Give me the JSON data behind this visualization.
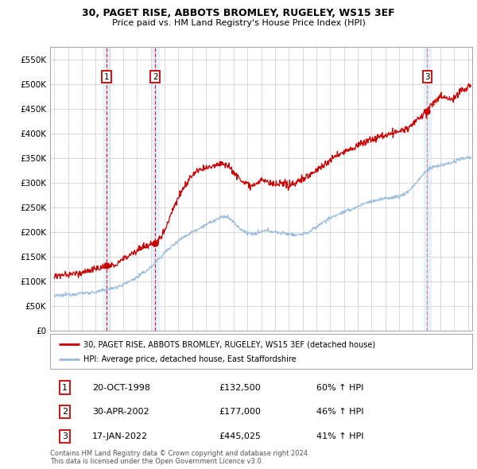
{
  "title_line1": "30, PAGET RISE, ABBOTS BROMLEY, RUGELEY, WS15 3EF",
  "title_line2": "Price paid vs. HM Land Registry's House Price Index (HPI)",
  "ylim": [
    0,
    575000
  ],
  "yticks": [
    0,
    50000,
    100000,
    150000,
    200000,
    250000,
    300000,
    350000,
    400000,
    450000,
    500000,
    550000
  ],
  "ytick_labels": [
    "£0",
    "£50K",
    "£100K",
    "£150K",
    "£200K",
    "£250K",
    "£300K",
    "£350K",
    "£400K",
    "£450K",
    "£500K",
    "£550K"
  ],
  "xlim_start": 1994.7,
  "xlim_end": 2025.3,
  "xticks": [
    1995,
    1996,
    1997,
    1998,
    1999,
    2000,
    2001,
    2002,
    2003,
    2004,
    2005,
    2006,
    2007,
    2008,
    2009,
    2010,
    2011,
    2012,
    2013,
    2014,
    2015,
    2016,
    2017,
    2018,
    2019,
    2020,
    2021,
    2022,
    2023,
    2024,
    2025
  ],
  "sale_dates": [
    1998.8,
    2002.33,
    2022.04
  ],
  "sale_prices": [
    132500,
    177000,
    445025
  ],
  "sale_labels": [
    "1",
    "2",
    "3"
  ],
  "red_line_color": "#cc0000",
  "blue_line_color": "#99bbdd",
  "vline_color": "#cc0000",
  "grid_color": "#cccccc",
  "sale_bg_color": "#ddeeff",
  "legend_line1": "30, PAGET RISE, ABBOTS BROMLEY, RUGELEY, WS15 3EF (detached house)",
  "legend_line2": "HPI: Average price, detached house, East Staffordshire",
  "table_entries": [
    {
      "num": "1",
      "date": "20-OCT-1998",
      "price": "£132,500",
      "hpi": "60% ↑ HPI"
    },
    {
      "num": "2",
      "date": "30-APR-2002",
      "price": "£177,000",
      "hpi": "46% ↑ HPI"
    },
    {
      "num": "3",
      "date": "17-JAN-2022",
      "price": "£445,025",
      "hpi": "41% ↑ HPI"
    }
  ],
  "footer": "Contains HM Land Registry data © Crown copyright and database right 2024.\nThis data is licensed under the Open Government Licence v3.0."
}
